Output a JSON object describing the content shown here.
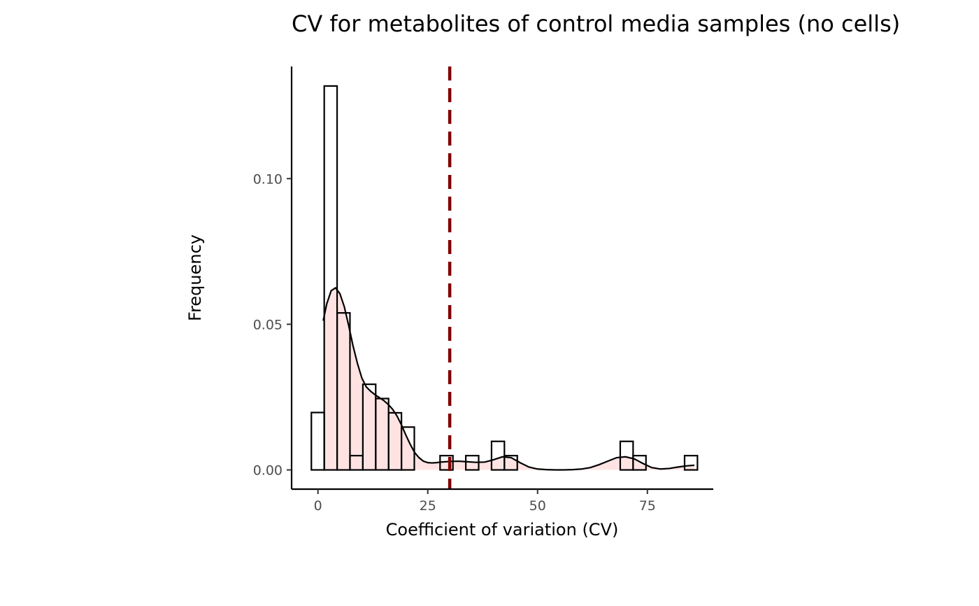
{
  "chart_data": {
    "type": "bar",
    "title": "CV for metabolites of control media samples (no cells)",
    "xlabel": "Coefficient of variation (CV)",
    "ylabel": "Frequency",
    "xlim": [
      -6,
      90
    ],
    "ylim": [
      -0.0066,
      0.1385
    ],
    "x_ticks": [
      0,
      25,
      50,
      75
    ],
    "y_ticks": [
      0.0,
      0.05,
      0.1
    ],
    "x_tick_labels": [
      "0",
      "25",
      "50",
      "75"
    ],
    "y_tick_labels": [
      "0.00",
      "0.05",
      "0.10"
    ],
    "bin_width": 2.93,
    "bins": [
      {
        "x0": -1.5,
        "x1": 1.43,
        "value": 0.0197
      },
      {
        "x0": 1.43,
        "x1": 4.36,
        "value": 0.1318
      },
      {
        "x0": 4.36,
        "x1": 7.29,
        "value": 0.0539
      },
      {
        "x0": 7.29,
        "x1": 10.22,
        "value": 0.0049
      },
      {
        "x0": 10.22,
        "x1": 13.15,
        "value": 0.0294
      },
      {
        "x0": 13.15,
        "x1": 16.08,
        "value": 0.0245
      },
      {
        "x0": 16.08,
        "x1": 19.01,
        "value": 0.0196
      },
      {
        "x0": 19.01,
        "x1": 21.94,
        "value": 0.0147
      },
      {
        "x0": 21.94,
        "x1": 24.87,
        "value": 0.0
      },
      {
        "x0": 24.87,
        "x1": 27.8,
        "value": 0.0
      },
      {
        "x0": 27.8,
        "x1": 30.73,
        "value": 0.0049
      },
      {
        "x0": 30.73,
        "x1": 33.66,
        "value": 0.0
      },
      {
        "x0": 33.66,
        "x1": 36.59,
        "value": 0.0049
      },
      {
        "x0": 36.59,
        "x1": 39.52,
        "value": 0.0
      },
      {
        "x0": 39.52,
        "x1": 42.45,
        "value": 0.0098
      },
      {
        "x0": 42.45,
        "x1": 45.38,
        "value": 0.0049
      },
      {
        "x0": 45.38,
        "x1": 48.31,
        "value": 0.0
      },
      {
        "x0": 48.31,
        "x1": 51.24,
        "value": 0.0
      },
      {
        "x0": 51.24,
        "x1": 54.17,
        "value": 0.0
      },
      {
        "x0": 54.17,
        "x1": 57.1,
        "value": 0.0
      },
      {
        "x0": 57.1,
        "x1": 60.03,
        "value": 0.0
      },
      {
        "x0": 60.03,
        "x1": 62.96,
        "value": 0.0
      },
      {
        "x0": 62.96,
        "x1": 65.89,
        "value": 0.0
      },
      {
        "x0": 65.89,
        "x1": 68.82,
        "value": 0.0
      },
      {
        "x0": 68.82,
        "x1": 71.75,
        "value": 0.0098
      },
      {
        "x0": 71.75,
        "x1": 74.68,
        "value": 0.0049
      },
      {
        "x0": 74.68,
        "x1": 77.61,
        "value": 0.0
      },
      {
        "x0": 77.61,
        "x1": 80.54,
        "value": 0.0
      },
      {
        "x0": 80.54,
        "x1": 83.47,
        "value": 0.0
      },
      {
        "x0": 83.47,
        "x1": 86.4,
        "value": 0.0049
      }
    ],
    "density": {
      "x": [
        1.2,
        2.0,
        3.0,
        4.0,
        5.0,
        6.0,
        7.0,
        8.0,
        9.0,
        10.0,
        11.0,
        12.0,
        13.0,
        14.0,
        15.0,
        16.0,
        17.0,
        18.0,
        19.0,
        20.0,
        21.0,
        22.0,
        23.0,
        24.0,
        25.0,
        26.0,
        27.0,
        28.0,
        30.0,
        32.0,
        34.0,
        36.0,
        38.0,
        40.0,
        42.0,
        44.0,
        46.0,
        48.0,
        50.0,
        52.0,
        54.0,
        56.0,
        58.0,
        60.0,
        62.0,
        64.0,
        66.0,
        68.0,
        70.0,
        72.0,
        74.0,
        76.0,
        78.0,
        80.0,
        82.0,
        84.0,
        85.7
      ],
      "y": [
        0.0512,
        0.057,
        0.0615,
        0.0625,
        0.0605,
        0.056,
        0.0495,
        0.0425,
        0.0365,
        0.0315,
        0.0285,
        0.027,
        0.0258,
        0.0248,
        0.0238,
        0.0225,
        0.0208,
        0.0185,
        0.0155,
        0.012,
        0.0088,
        0.006,
        0.0042,
        0.003,
        0.0025,
        0.0024,
        0.0025,
        0.0027,
        0.0029,
        0.003,
        0.0028,
        0.0026,
        0.0027,
        0.0035,
        0.0045,
        0.0042,
        0.0025,
        0.001,
        0.0003,
        0.0001,
        0.0,
        0.0,
        0.0001,
        0.0003,
        0.0008,
        0.0018,
        0.003,
        0.0042,
        0.0045,
        0.0038,
        0.0022,
        0.0008,
        0.0003,
        0.0005,
        0.001,
        0.0014,
        0.0016
      ]
    },
    "reference_line": {
      "x": 30
    },
    "colors": {
      "density_fill": "#ffb6b6",
      "reference_line": "#800000",
      "bar_outline": "#000000"
    },
    "legend": "none",
    "grid": false
  }
}
